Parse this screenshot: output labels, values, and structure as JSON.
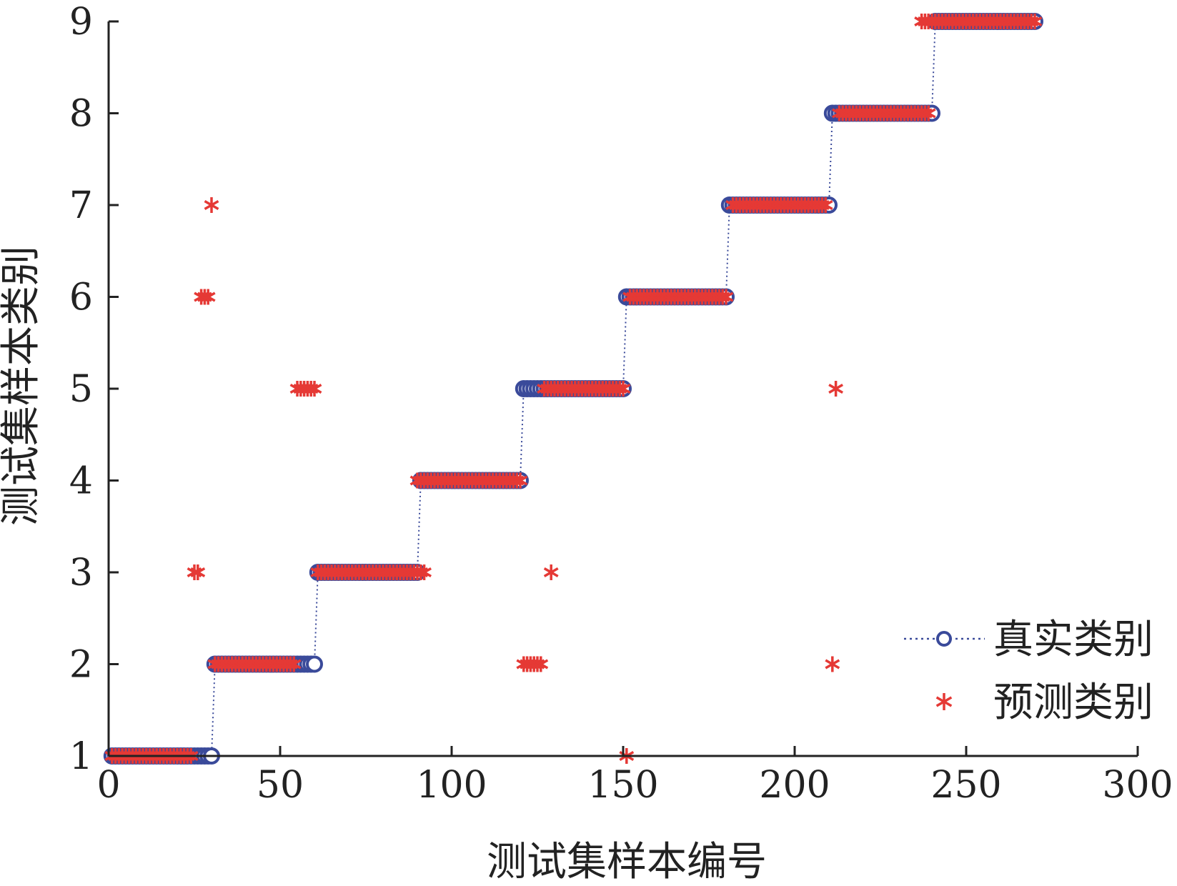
{
  "chart_data": {
    "type": "scatter",
    "xlabel": "测试集样本编号",
    "ylabel": "测试集样本类别",
    "xlim": [
      0,
      300
    ],
    "ylim": [
      1,
      9
    ],
    "xticks": [
      0,
      50,
      100,
      150,
      200,
      250,
      300
    ],
    "yticks": [
      1,
      2,
      3,
      4,
      5,
      6,
      7,
      8,
      9
    ],
    "grid": false,
    "legend_position": "lower-right",
    "colors": {
      "true": "#3a4a9a",
      "pred": "#e53935",
      "axis": "#222222"
    },
    "series": [
      {
        "name": "真实类别",
        "marker": "circle",
        "line": "dotted",
        "segments": [
          {
            "x_start": 1,
            "x_end": 30,
            "y": 1
          },
          {
            "x_start": 31,
            "x_end": 60,
            "y": 2
          },
          {
            "x_start": 61,
            "x_end": 90,
            "y": 3
          },
          {
            "x_start": 91,
            "x_end": 120,
            "y": 4
          },
          {
            "x_start": 121,
            "x_end": 150,
            "y": 5
          },
          {
            "x_start": 151,
            "x_end": 180,
            "y": 6
          },
          {
            "x_start": 181,
            "x_end": 210,
            "y": 7
          },
          {
            "x_start": 211,
            "x_end": 240,
            "y": 8
          },
          {
            "x_start": 241,
            "x_end": 270,
            "y": 9
          }
        ]
      },
      {
        "name": "预测类别",
        "marker": "asterisk",
        "line": "none",
        "segments": [
          {
            "x_start": 1,
            "x_end": 24,
            "y": 1
          },
          {
            "x_start": 31,
            "x_end": 54,
            "y": 2
          },
          {
            "x_start": 61,
            "x_end": 92,
            "y": 3
          },
          {
            "x_start": 90,
            "x_end": 120,
            "y": 4
          },
          {
            "x_start": 127,
            "x_end": 150,
            "y": 5
          },
          {
            "x_start": 152,
            "x_end": 180,
            "y": 6
          },
          {
            "x_start": 182,
            "x_end": 209,
            "y": 7
          },
          {
            "x_start": 213,
            "x_end": 239,
            "y": 8
          },
          {
            "x_start": 237,
            "x_end": 270,
            "y": 9
          }
        ],
        "points": [
          {
            "x": 25,
            "y": 3
          },
          {
            "x": 26,
            "y": 3
          },
          {
            "x": 27,
            "y": 6
          },
          {
            "x": 28,
            "y": 6
          },
          {
            "x": 29,
            "y": 6
          },
          {
            "x": 30,
            "y": 7
          },
          {
            "x": 55,
            "y": 5
          },
          {
            "x": 56,
            "y": 5
          },
          {
            "x": 57,
            "y": 5
          },
          {
            "x": 58,
            "y": 5
          },
          {
            "x": 59,
            "y": 5
          },
          {
            "x": 60,
            "y": 5
          },
          {
            "x": 121,
            "y": 2
          },
          {
            "x": 122,
            "y": 2
          },
          {
            "x": 123,
            "y": 2
          },
          {
            "x": 124,
            "y": 2
          },
          {
            "x": 125,
            "y": 2
          },
          {
            "x": 126,
            "y": 2
          },
          {
            "x": 129,
            "y": 3
          },
          {
            "x": 151,
            "y": 1
          },
          {
            "x": 211,
            "y": 2
          },
          {
            "x": 212,
            "y": 5
          }
        ]
      }
    ]
  }
}
